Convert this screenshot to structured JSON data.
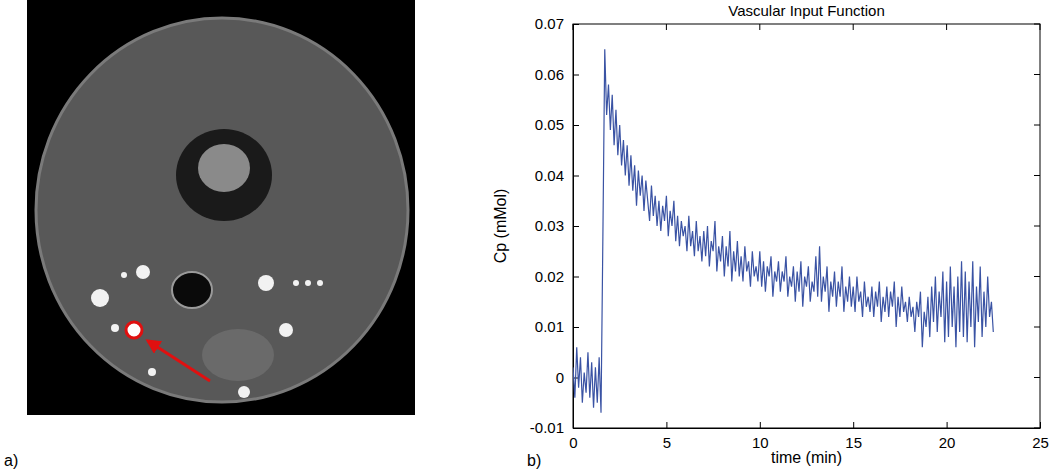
{
  "figure": {
    "panels": [
      {
        "label": "a)"
      },
      {
        "label": "b)"
      }
    ]
  },
  "chart_data": {
    "type": "line",
    "title": "Vascular Input Function",
    "x_label": "time (min)",
    "y_label": "Cp (mMol)",
    "xlim": [
      0,
      25
    ],
    "xticks": [
      0,
      5,
      10,
      15,
      20,
      25
    ],
    "ylim": [
      -0.01,
      0.07
    ],
    "yticks": [
      -0.01,
      0,
      0.01,
      0.02,
      0.03,
      0.04,
      0.05,
      0.06,
      0.07
    ],
    "grid": false,
    "x": [
      0,
      0.1,
      0.2,
      0.3,
      0.4,
      0.5,
      0.6,
      0.7,
      0.8,
      0.9,
      1,
      1.1,
      1.2,
      1.3,
      1.4,
      1.5,
      1.6,
      1.7,
      1.8,
      1.9,
      2,
      2.1,
      2.2,
      2.3,
      2.4,
      2.5,
      2.6,
      2.7,
      2.8,
      2.9,
      3,
      3.1,
      3.2,
      3.3,
      3.4,
      3.5,
      3.6,
      3.7,
      3.8,
      3.9,
      4,
      4.1,
      4.2,
      4.3,
      4.4,
      4.5,
      4.6,
      4.7,
      4.8,
      4.9,
      5,
      5.1,
      5.2,
      5.3,
      5.4,
      5.5,
      5.6,
      5.7,
      5.8,
      5.9,
      6,
      6.1,
      6.2,
      6.3,
      6.4,
      6.5,
      6.6,
      6.7,
      6.8,
      6.9,
      7,
      7.1,
      7.2,
      7.3,
      7.4,
      7.5,
      7.6,
      7.7,
      7.8,
      7.9,
      8,
      8.1,
      8.2,
      8.3,
      8.4,
      8.5,
      8.6,
      8.7,
      8.8,
      8.9,
      9,
      9.1,
      9.2,
      9.3,
      9.4,
      9.5,
      9.6,
      9.7,
      9.8,
      9.9,
      10,
      10.1,
      10.2,
      10.3,
      10.4,
      10.5,
      10.6,
      10.7,
      10.8,
      10.9,
      11,
      11.1,
      11.2,
      11.3,
      11.4,
      11.5,
      11.6,
      11.7,
      11.8,
      11.9,
      12,
      12.1,
      12.2,
      12.3,
      12.4,
      12.5,
      12.6,
      12.7,
      12.8,
      12.9,
      13,
      13.1,
      13.2,
      13.3,
      13.4,
      13.5,
      13.6,
      13.7,
      13.8,
      13.9,
      14,
      14.1,
      14.2,
      14.3,
      14.4,
      14.5,
      14.6,
      14.7,
      14.8,
      14.9,
      15,
      15.1,
      15.2,
      15.3,
      15.4,
      15.5,
      15.6,
      15.7,
      15.8,
      15.9,
      16,
      16.1,
      16.2,
      16.3,
      16.4,
      16.5,
      16.6,
      16.7,
      16.8,
      16.9,
      17,
      17.1,
      17.2,
      17.3,
      17.4,
      17.5,
      17.6,
      17.7,
      17.8,
      17.9,
      18,
      18.1,
      18.2,
      18.3,
      18.4,
      18.5,
      18.6,
      18.7,
      18.8,
      18.9,
      19,
      19.1,
      19.2,
      19.3,
      19.4,
      19.5,
      19.6,
      19.7,
      19.8,
      19.9,
      20,
      20.1,
      20.2,
      20.3,
      20.4,
      20.5,
      20.6,
      20.7,
      20.8,
      20.9,
      21,
      21.1,
      21.2,
      21.3,
      21.4,
      21.5,
      21.6,
      21.7,
      21.8,
      21.9,
      22,
      22.1,
      22.2,
      22.3,
      22.4,
      22.5
    ],
    "series": [
      {
        "name": "Cp",
        "color": "#3a53a4",
        "values": [
          0.002,
          -0.004,
          0.006,
          -0.002,
          0.004,
          -0.005,
          0.001,
          -0.003,
          0.005,
          -0.004,
          0.003,
          -0.006,
          0.002,
          -0.005,
          0.004,
          -0.007,
          0.028,
          0.065,
          0.052,
          0.058,
          0.049,
          0.056,
          0.046,
          0.053,
          0.044,
          0.05,
          0.042,
          0.047,
          0.04,
          0.046,
          0.038,
          0.044,
          0.037,
          0.042,
          0.034,
          0.041,
          0.036,
          0.04,
          0.033,
          0.039,
          0.035,
          0.031,
          0.038,
          0.032,
          0.036,
          0.03,
          0.035,
          0.029,
          0.034,
          0.031,
          0.036,
          0.028,
          0.033,
          0.03,
          0.035,
          0.027,
          0.032,
          0.026,
          0.031,
          0.028,
          0.03,
          0.025,
          0.032,
          0.026,
          0.029,
          0.024,
          0.031,
          0.025,
          0.028,
          0.023,
          0.029,
          0.024,
          0.03,
          0.022,
          0.027,
          0.025,
          0.031,
          0.021,
          0.026,
          0.023,
          0.028,
          0.02,
          0.026,
          0.022,
          0.029,
          0.019,
          0.025,
          0.021,
          0.027,
          0.02,
          0.024,
          0.019,
          0.026,
          0.021,
          0.023,
          0.018,
          0.025,
          0.02,
          0.022,
          0.019,
          0.025,
          0.018,
          0.023,
          0.017,
          0.022,
          0.02,
          0.024,
          0.016,
          0.021,
          0.019,
          0.023,
          0.017,
          0.021,
          0.019,
          0.024,
          0.016,
          0.02,
          0.018,
          0.022,
          0.015,
          0.021,
          0.017,
          0.023,
          0.014,
          0.02,
          0.018,
          0.022,
          0.015,
          0.019,
          0.017,
          0.024,
          0.016,
          0.026,
          0.015,
          0.02,
          0.017,
          0.022,
          0.013,
          0.019,
          0.016,
          0.021,
          0.014,
          0.019,
          0.016,
          0.022,
          0.013,
          0.018,
          0.015,
          0.02,
          0.014,
          0.018,
          0.013,
          0.02,
          0.015,
          0.017,
          0.012,
          0.019,
          0.014,
          0.016,
          0.013,
          0.018,
          0.012,
          0.017,
          0.014,
          0.019,
          0.011,
          0.016,
          0.013,
          0.018,
          0.012,
          0.017,
          0.014,
          0.019,
          0.01,
          0.016,
          0.012,
          0.018,
          0.013,
          0.015,
          0.011,
          0.016,
          0.012,
          0.014,
          0.009,
          0.015,
          0.012,
          0.017,
          0.006,
          0.013,
          0.01,
          0.016,
          0.008,
          0.018,
          0.011,
          0.02,
          0.009,
          0.017,
          0.012,
          0.021,
          0.007,
          0.019,
          0.008,
          0.022,
          0.01,
          0.018,
          0.006,
          0.02,
          0.009,
          0.023,
          0.008,
          0.021,
          0.007,
          0.019,
          0.01,
          0.023,
          0.006,
          0.018,
          0.011,
          0.022,
          0.008,
          0.017,
          0.01,
          0.02,
          0.012,
          0.015,
          0.009
        ]
      }
    ]
  }
}
